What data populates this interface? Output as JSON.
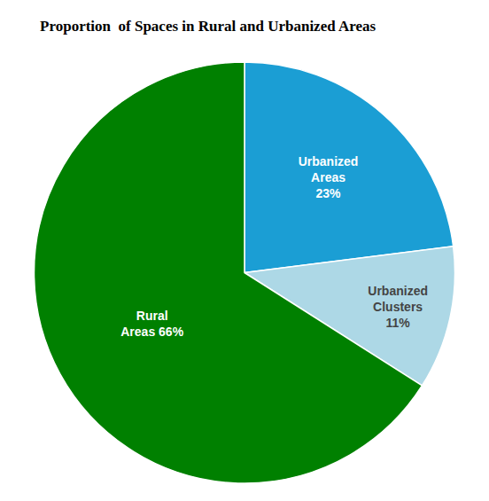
{
  "chart_data": {
    "type": "pie",
    "title": "Proportion  of Spaces in Rural and Urbanized Areas",
    "values": [
      23,
      11,
      66
    ],
    "value_labels": [
      "Urbanized\nAreas\n23%",
      "Urbanized\nClusters\n11%",
      "Rural\nAreas 66%"
    ],
    "colors": [
      "#1b9ed4",
      "#add8e6",
      "#008000"
    ]
  }
}
